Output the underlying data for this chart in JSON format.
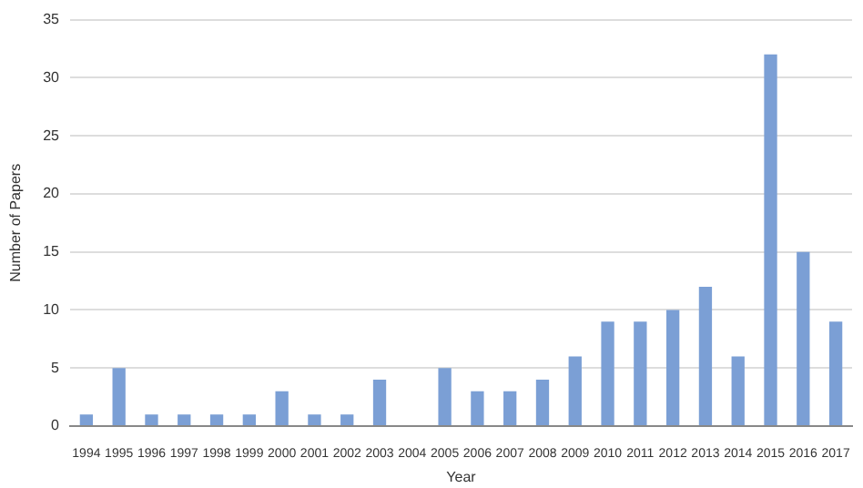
{
  "chart_data": {
    "type": "bar",
    "xlabel": "Year",
    "ylabel": "Number of Papers",
    "categories": [
      "1994",
      "1995",
      "1996",
      "1997",
      "1998",
      "1999",
      "2000",
      "2001",
      "2002",
      "2003",
      "2004",
      "2005",
      "2006",
      "2007",
      "2008",
      "2009",
      "2010",
      "2011",
      "2012",
      "2013",
      "2014",
      "2015",
      "2016",
      "2017"
    ],
    "values": [
      1,
      5,
      1,
      1,
      1,
      1,
      3,
      1,
      1,
      4,
      0,
      5,
      3,
      3,
      4,
      6,
      9,
      9,
      10,
      12,
      6,
      32,
      15,
      9
    ],
    "color": "#7b9fd5",
    "ylim": [
      0,
      35
    ],
    "yticks": [
      0,
      5,
      10,
      15,
      20,
      25,
      30,
      35
    ],
    "grid": "y",
    "legend": false
  }
}
